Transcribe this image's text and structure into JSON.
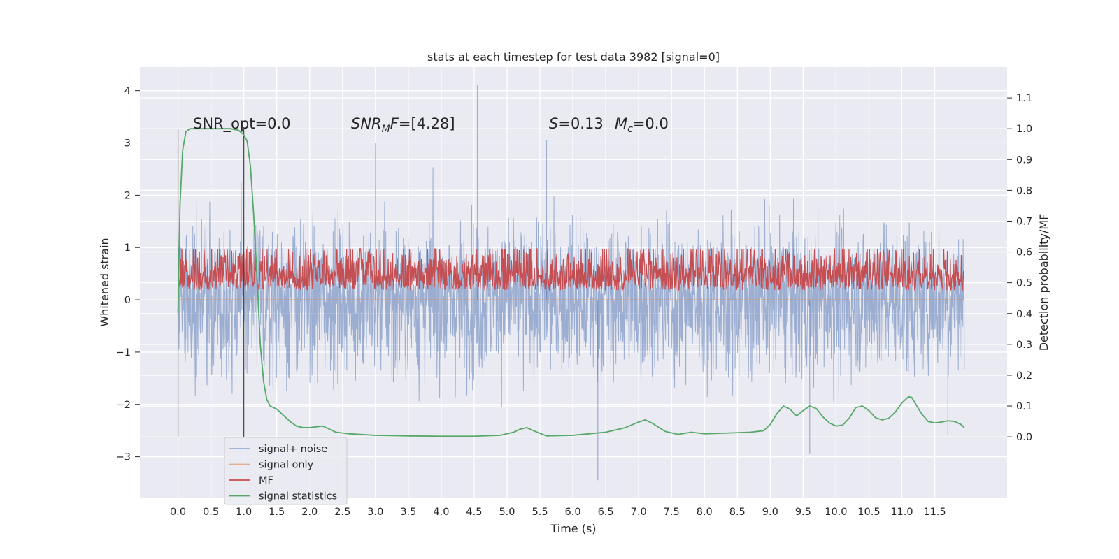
{
  "chart_data": {
    "type": "line",
    "title": "stats at each timestep for test data 3982 [signal=0]",
    "xlabel": "Time (s)",
    "ylabel": "Whitened strain",
    "y2label": "Detection probability/MF",
    "xlim": [
      -0.58,
      12.6
    ],
    "ylim": [
      -3.78,
      4.45
    ],
    "y2lim": [
      -0.197,
      1.2
    ],
    "grid": true,
    "xticks": [
      "0.0",
      "0.5",
      "1.0",
      "1.5",
      "2.0",
      "2.5",
      "3.0",
      "3.5",
      "4.0",
      "4.5",
      "5.0",
      "5.5",
      "6.0",
      "6.5",
      "7.0",
      "7.5",
      "8.0",
      "8.5",
      "9.0",
      "9.5",
      "10.0",
      "10.5",
      "11.0",
      "11.5"
    ],
    "yticks": [
      "4",
      "3",
      "2",
      "1",
      "0",
      "−1",
      "−2",
      "−3"
    ],
    "y2ticks": [
      "1.1",
      "1.0",
      "0.9",
      "0.8",
      "0.7",
      "0.6",
      "0.5",
      "0.4",
      "0.3",
      "0.2",
      "0.1",
      "0.0"
    ],
    "annotations": {
      "snr_opt": "SNR_opt=0.0",
      "snr_mf_var": "SNR",
      "snr_mf_sub": "M",
      "snr_mf_tail": "F",
      "snr_mf_value": "=[4.28]",
      "s_var": "S",
      "s_value": "=0.13",
      "mc_var": "M",
      "mc_sub": "c",
      "mc_value": "=0.0"
    },
    "vlines": [
      0.0,
      1.0
    ],
    "series": [
      {
        "name": "signal+ noise",
        "color": "#4c72b0",
        "alpha": 0.5,
        "axis": "left",
        "kind": "noise",
        "std": 0.72,
        "peak_max": 4.1,
        "peak_min": -3.45,
        "t_start": 0.0,
        "t_end": 11.95
      },
      {
        "name": "signal only",
        "color": "#dd8452",
        "alpha": 0.6,
        "axis": "left",
        "kind": "flat",
        "value": 0.0
      },
      {
        "name": "MF",
        "color": "#c44e52",
        "alpha": 1.0,
        "axis": "right",
        "kind": "mf",
        "baseline": 0.5,
        "spread": 0.07,
        "peak_max": 0.61
      },
      {
        "name": "signal statistics",
        "color": "#55a868",
        "alpha": 1.0,
        "axis": "right",
        "kind": "curve",
        "x": [
          0.0,
          0.03,
          0.07,
          0.12,
          0.18,
          0.25,
          0.4,
          0.6,
          0.8,
          0.92,
          1.0,
          1.05,
          1.1,
          1.15,
          1.2,
          1.25,
          1.3,
          1.35,
          1.4,
          1.5,
          1.6,
          1.7,
          1.8,
          1.9,
          2.0,
          2.2,
          2.4,
          2.6,
          3.0,
          3.5,
          4.0,
          4.5,
          4.9,
          5.1,
          5.2,
          5.3,
          5.4,
          5.6,
          6.0,
          6.5,
          6.8,
          7.0,
          7.1,
          7.2,
          7.4,
          7.6,
          7.8,
          8.0,
          8.3,
          8.7,
          8.9,
          9.0,
          9.1,
          9.2,
          9.3,
          9.4,
          9.5,
          9.6,
          9.7,
          9.8,
          9.9,
          10.0,
          10.1,
          10.2,
          10.3,
          10.4,
          10.5,
          10.6,
          10.7,
          10.8,
          10.9,
          11.0,
          11.1,
          11.15,
          11.2,
          11.3,
          11.4,
          11.5,
          11.6,
          11.7,
          11.8,
          11.9,
          11.95
        ],
        "y": [
          0.4,
          0.75,
          0.93,
          0.99,
          1.0,
          1.0,
          1.0,
          1.0,
          1.0,
          0.995,
          0.98,
          0.96,
          0.88,
          0.72,
          0.52,
          0.3,
          0.18,
          0.12,
          0.1,
          0.09,
          0.07,
          0.05,
          0.035,
          0.03,
          0.03,
          0.035,
          0.015,
          0.01,
          0.005,
          0.003,
          0.002,
          0.002,
          0.005,
          0.015,
          0.025,
          0.03,
          0.02,
          0.003,
          0.005,
          0.015,
          0.03,
          0.048,
          0.055,
          0.045,
          0.018,
          0.008,
          0.015,
          0.01,
          0.012,
          0.015,
          0.02,
          0.04,
          0.075,
          0.1,
          0.09,
          0.068,
          0.085,
          0.1,
          0.092,
          0.065,
          0.045,
          0.035,
          0.038,
          0.06,
          0.095,
          0.1,
          0.085,
          0.062,
          0.055,
          0.06,
          0.08,
          0.11,
          0.13,
          0.128,
          0.11,
          0.075,
          0.05,
          0.045,
          0.048,
          0.052,
          0.05,
          0.04,
          0.03
        ]
      }
    ],
    "legend_position": "lower-left"
  }
}
